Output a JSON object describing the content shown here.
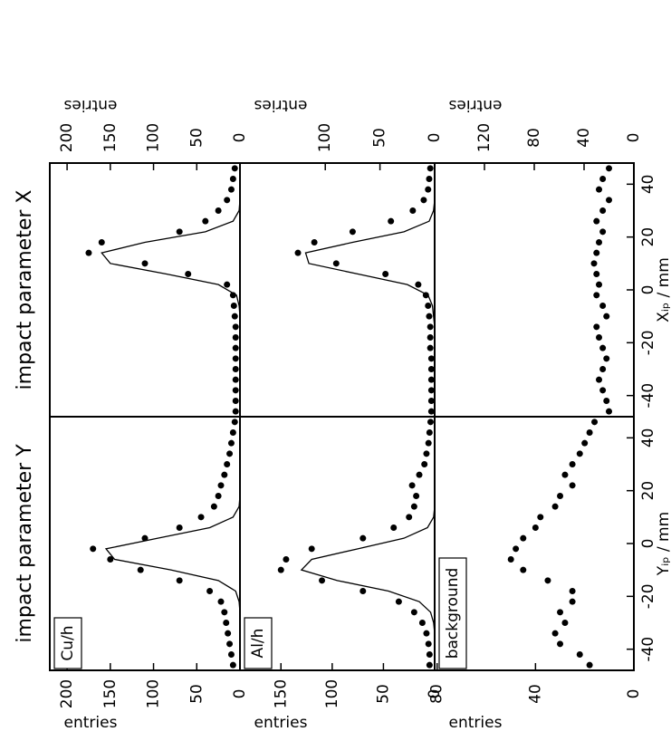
{
  "chart_data": [
    {
      "type": "scatter",
      "title": "impact parameter Y",
      "label": "Cu/h",
      "ylabel": "entries",
      "x": [
        -46,
        -42,
        -38,
        -34,
        -30,
        -26,
        -22,
        -18,
        -14,
        -10,
        -6,
        -2,
        2,
        6,
        10,
        14,
        18,
        22,
        26,
        30,
        34,
        38,
        42,
        46
      ],
      "values": [
        8,
        10,
        12,
        14,
        16,
        18,
        22,
        35,
        70,
        115,
        150,
        170,
        110,
        70,
        45,
        30,
        25,
        22,
        18,
        15,
        12,
        10,
        8,
        6
      ],
      "fit": [
        0,
        0,
        0,
        0,
        0,
        0,
        1,
        5,
        25,
        80,
        145,
        155,
        95,
        35,
        8,
        1,
        0,
        0,
        0,
        0,
        0,
        0,
        0,
        0
      ],
      "xlim": [
        -48,
        48
      ],
      "ylim": [
        0,
        220
      ],
      "yticks": [
        0,
        50,
        100,
        150,
        200
      ]
    },
    {
      "type": "scatter",
      "label": "Al/h",
      "ylabel": "entries",
      "x": [
        -46,
        -42,
        -38,
        -34,
        -30,
        -26,
        -22,
        -18,
        -14,
        -10,
        -6,
        -2,
        2,
        6,
        10,
        14,
        18,
        22,
        26,
        30,
        34,
        38,
        42,
        46
      ],
      "values": [
        5,
        5,
        6,
        8,
        12,
        20,
        35,
        70,
        110,
        150,
        145,
        120,
        70,
        40,
        25,
        20,
        18,
        22,
        15,
        10,
        8,
        6,
        5,
        4
      ],
      "fit": [
        0,
        0,
        0,
        0,
        1,
        4,
        15,
        45,
        95,
        130,
        120,
        75,
        30,
        7,
        1,
        0,
        0,
        0,
        0,
        0,
        0,
        0,
        0,
        0
      ],
      "xlim": [
        -48,
        48
      ],
      "ylim": [
        0,
        190
      ],
      "yticks": [
        0,
        50,
        100,
        150
      ]
    },
    {
      "type": "scatter",
      "label": "background",
      "ylabel": "entries",
      "xlabel": "Yᵢₚ / mm",
      "x": [
        -46,
        -42,
        -38,
        -34,
        -30,
        -26,
        -22,
        -18,
        -14,
        -10,
        -6,
        -2,
        2,
        6,
        10,
        14,
        18,
        22,
        26,
        30,
        34,
        38,
        42,
        46
      ],
      "values": [
        18,
        22,
        30,
        32,
        28,
        30,
        25,
        25,
        35,
        45,
        50,
        48,
        45,
        40,
        38,
        32,
        30,
        25,
        28,
        25,
        22,
        20,
        18,
        16
      ],
      "xlim": [
        -48,
        48
      ],
      "xticks": [
        -40,
        -20,
        0,
        20,
        40
      ],
      "ylim": [
        0,
        81
      ],
      "yticks": [
        0,
        40,
        80
      ]
    },
    {
      "type": "scatter",
      "title": "impact parameter X",
      "ylabel": "entries",
      "x": [
        -46,
        -42,
        -38,
        -34,
        -30,
        -26,
        -22,
        -18,
        -14,
        -10,
        -6,
        -2,
        2,
        6,
        10,
        14,
        18,
        22,
        26,
        30,
        34,
        38,
        42,
        46
      ],
      "values": [
        5,
        5,
        5,
        5,
        5,
        5,
        5,
        5,
        5,
        6,
        7,
        8,
        15,
        60,
        110,
        175,
        160,
        70,
        40,
        25,
        15,
        10,
        8,
        6
      ],
      "fit": [
        0,
        0,
        0,
        0,
        0,
        0,
        0,
        0,
        0,
        0,
        1,
        4,
        25,
        85,
        150,
        160,
        110,
        40,
        8,
        1,
        0,
        0,
        0,
        0
      ],
      "xlim": [
        -48,
        48
      ],
      "ylim": [
        0,
        220
      ],
      "yticks": [
        0,
        50,
        100,
        150,
        200
      ]
    },
    {
      "type": "scatter",
      "ylabel": "entries",
      "x": [
        -46,
        -42,
        -38,
        -34,
        -30,
        -26,
        -22,
        -18,
        -14,
        -10,
        -6,
        -2,
        2,
        6,
        10,
        14,
        18,
        22,
        26,
        30,
        34,
        38,
        42,
        46
      ],
      "values": [
        3,
        3,
        3,
        3,
        3,
        3,
        4,
        4,
        4,
        5,
        6,
        8,
        15,
        45,
        90,
        125,
        110,
        75,
        40,
        20,
        10,
        6,
        5,
        4
      ],
      "fit": [
        0,
        0,
        0,
        0,
        0,
        0,
        0,
        0,
        0,
        1,
        2,
        6,
        25,
        70,
        115,
        118,
        75,
        28,
        5,
        1,
        0,
        0,
        0,
        0
      ],
      "xlim": [
        -48,
        48
      ],
      "ylim": [
        0,
        178
      ],
      "yticks": [
        0,
        50,
        100
      ]
    },
    {
      "type": "scatter",
      "ylabel": "entries",
      "xlabel": "Xᵢₚ / mm",
      "x": [
        -46,
        -42,
        -38,
        -34,
        -30,
        -26,
        -22,
        -18,
        -14,
        -10,
        -6,
        -2,
        2,
        6,
        10,
        14,
        18,
        22,
        26,
        30,
        34,
        38,
        42,
        46
      ],
      "values": [
        20,
        22,
        25,
        28,
        25,
        22,
        25,
        28,
        30,
        22,
        25,
        30,
        28,
        30,
        32,
        30,
        28,
        25,
        30,
        25,
        20,
        28,
        25,
        20
      ],
      "xlim": [
        -48,
        48
      ],
      "xticks": [
        -40,
        -20,
        0,
        20,
        40
      ],
      "ylim": [
        0,
        160
      ],
      "yticks": [
        0,
        40,
        80,
        120
      ]
    }
  ]
}
